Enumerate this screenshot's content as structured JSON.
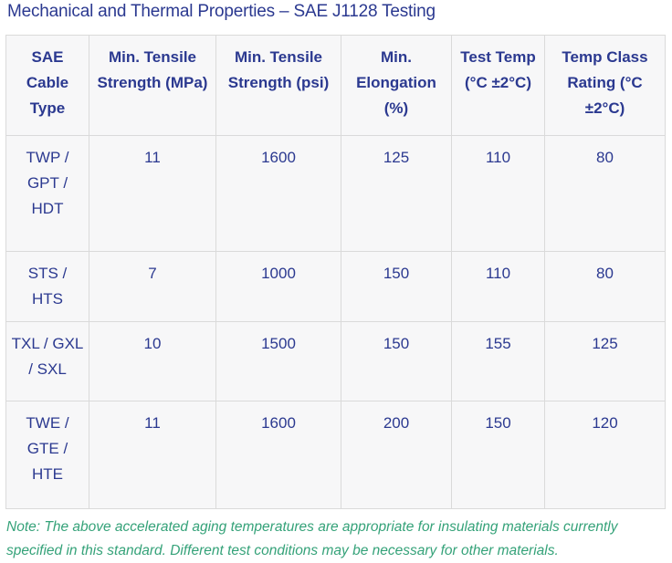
{
  "page": {
    "title": "Mechanical and Thermal Properties – SAE J1128 Testing"
  },
  "table": {
    "columns": [
      {
        "id": "cable_type",
        "label": "SAE\nCable\nType"
      },
      {
        "id": "min_tensile_mpa",
        "label": "Min. Tensile\nStrength (MPa)"
      },
      {
        "id": "min_tensile_psi",
        "label": "Min. Tensile\nStrength (psi)"
      },
      {
        "id": "min_elongation_pct",
        "label": "Min.\nElongation\n(%)"
      },
      {
        "id": "test_temp_c",
        "label": "Test Temp\n(°C ±2°C)"
      },
      {
        "id": "temp_class_rating_c",
        "label": "Temp Class\nRating (°C\n±2°C)"
      }
    ],
    "rows": [
      {
        "cable_type": "TWP /\nGPT /\nHDT",
        "min_tensile_mpa": "11",
        "min_tensile_psi": "1600",
        "min_elongation_pct": "125",
        "test_temp_c": "110",
        "temp_class_rating_c": "80"
      },
      {
        "cable_type": "STS / HTS",
        "min_tensile_mpa": "7",
        "min_tensile_psi": "1000",
        "min_elongation_pct": "150",
        "test_temp_c": "110",
        "temp_class_rating_c": "80"
      },
      {
        "cable_type": "TXL / GXL\n/ SXL",
        "min_tensile_mpa": "10",
        "min_tensile_psi": "1500",
        "min_elongation_pct": "150",
        "test_temp_c": "155",
        "temp_class_rating_c": "125"
      },
      {
        "cable_type": "TWE /\nGTE /\nHTE",
        "min_tensile_mpa": "11",
        "min_tensile_psi": "1600",
        "min_elongation_pct": "200",
        "test_temp_c": "150",
        "temp_class_rating_c": "120"
      }
    ]
  },
  "note": "Note: The above accelerated aging temperatures are appropriate for insulating materials currently specified in this standard. Different test conditions may be necessary for other materials.",
  "colors": {
    "title": "#2b3990",
    "table_text": "#2b3990",
    "note": "#35a279",
    "cell_bg": "#f7f7f8",
    "border": "#dadada"
  }
}
